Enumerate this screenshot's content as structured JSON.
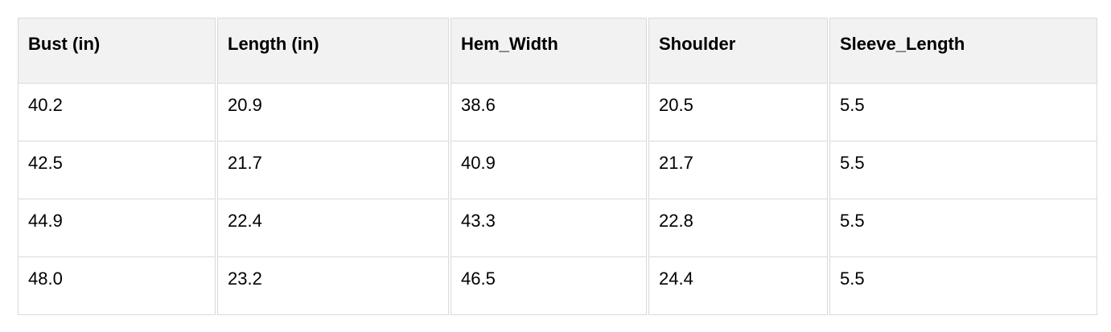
{
  "table": {
    "columns": [
      {
        "label": "Bust (in)"
      },
      {
        "label": "Length (in)"
      },
      {
        "label": "Hem_Width"
      },
      {
        "label": "Shoulder"
      },
      {
        "label": "Sleeve_Length"
      }
    ],
    "rows": [
      [
        "40.2",
        "20.9",
        "38.6",
        "20.5",
        "5.5"
      ],
      [
        "42.5",
        "21.7",
        "40.9",
        "21.7",
        "5.5"
      ],
      [
        "44.9",
        "22.4",
        "43.3",
        "22.8",
        "5.5"
      ],
      [
        "48.0",
        "23.2",
        "46.5",
        "24.4",
        "5.5"
      ]
    ]
  },
  "colors": {
    "header_bg": "#f2f2f2",
    "border": "#d9d9d9",
    "text": "#000000",
    "page_bg": "#ffffff"
  }
}
